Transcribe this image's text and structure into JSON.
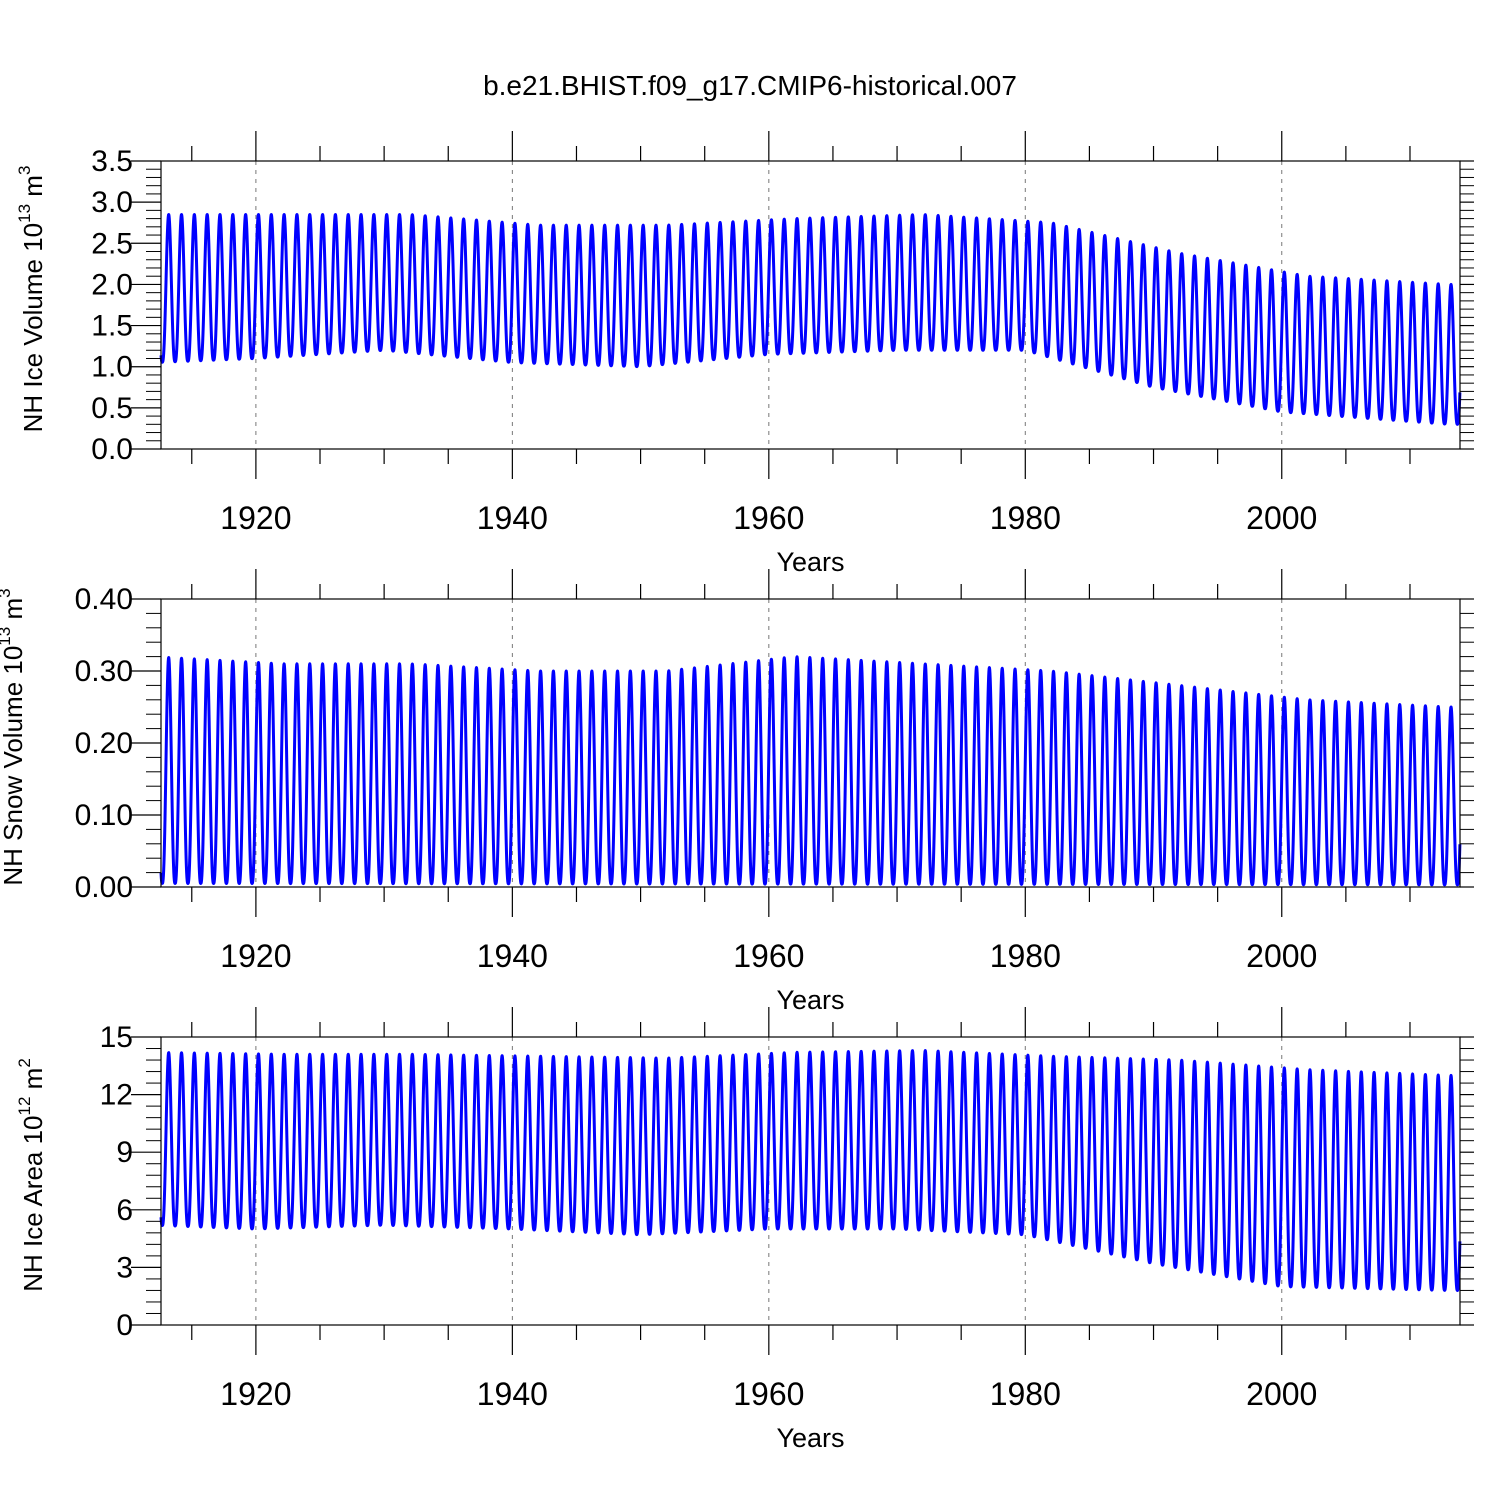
{
  "title": "b.e21.BHIST.f09_g17.CMIP6-historical.007",
  "line_color": "#0000ff",
  "chart_data": [
    {
      "type": "line",
      "ylabel": "NH Ice Volume 10",
      "ylabel_exp": "13",
      "ylabel_unit": " m",
      "ylabel_unit_exp": "3",
      "xlabel": "Years",
      "xlim": [
        1912.6,
        2013.9
      ],
      "ylim": [
        0,
        3.5
      ],
      "yticks": [
        0.0,
        0.5,
        1.0,
        1.5,
        2.0,
        2.5,
        3.0,
        3.5
      ],
      "yticklabels": [
        "0.0",
        "0.5",
        "1.0",
        "1.5",
        "2.0",
        "2.5",
        "3.0",
        "3.5"
      ],
      "ydecimals": 1,
      "xticks": [
        1920,
        1940,
        1960,
        1980,
        2000
      ],
      "xticklabels": [
        "1920",
        "1940",
        "1960",
        "1980",
        "2000"
      ],
      "grid": "vertical dashed at major x ticks",
      "series": [
        {
          "max_x": [
            1912,
            1922,
            1932,
            1942,
            1952,
            1962,
            1972,
            1982,
            1992,
            2002,
            2013
          ],
          "max_y": [
            2.85,
            2.85,
            2.85,
            2.72,
            2.72,
            2.8,
            2.85,
            2.75,
            2.38,
            2.1,
            2.0
          ],
          "min_x": [
            1912,
            1920,
            1930,
            1940,
            1950,
            1960,
            1970,
            1980,
            1990,
            2000,
            2013
          ],
          "min_y": [
            1.05,
            1.1,
            1.2,
            1.05,
            1.0,
            1.15,
            1.2,
            1.2,
            0.75,
            0.45,
            0.3
          ]
        }
      ]
    },
    {
      "type": "line",
      "ylabel": "NH Snow Volume 10",
      "ylabel_exp": "13",
      "ylabel_unit": " m",
      "ylabel_unit_exp": "3",
      "xlabel": "Years",
      "xlim": [
        1912.6,
        2013.9
      ],
      "ylim": [
        0,
        0.4
      ],
      "yticks": [
        0.0,
        0.1,
        0.2,
        0.3,
        0.4
      ],
      "yticklabels": [
        "0.00",
        "0.10",
        "0.20",
        "0.30",
        "0.40"
      ],
      "ydecimals": 2,
      "xticks": [
        1920,
        1940,
        1960,
        1980,
        2000
      ],
      "xticklabels": [
        "1920",
        "1940",
        "1960",
        "1980",
        "2000"
      ],
      "grid": "vertical dashed at major x ticks",
      "series": [
        {
          "max_x": [
            1912,
            1922,
            1932,
            1942,
            1952,
            1962,
            1972,
            1982,
            1992,
            2002,
            2013
          ],
          "max_y": [
            0.32,
            0.31,
            0.31,
            0.3,
            0.3,
            0.32,
            0.31,
            0.3,
            0.28,
            0.26,
            0.25
          ],
          "min_x": [
            1912,
            2013
          ],
          "min_y": [
            0.005,
            0.003
          ]
        }
      ]
    },
    {
      "type": "line",
      "ylabel": "NH Ice Area 10",
      "ylabel_exp": "12",
      "ylabel_unit": " m",
      "ylabel_unit_exp": "2",
      "xlabel": "Years",
      "xlim": [
        1912.6,
        2013.9
      ],
      "ylim": [
        0,
        15
      ],
      "yticks": [
        0,
        3,
        6,
        9,
        12,
        15
      ],
      "yticklabels": [
        "0",
        "3",
        "6",
        "9",
        "12",
        "15"
      ],
      "ydecimals": 0,
      "xticks": [
        1920,
        1940,
        1960,
        1980,
        2000
      ],
      "xticklabels": [
        "1920",
        "1940",
        "1960",
        "1980",
        "2000"
      ],
      "grid": "vertical dashed at major x ticks",
      "series": [
        {
          "max_x": [
            1912,
            1922,
            1932,
            1942,
            1952,
            1962,
            1972,
            1982,
            1992,
            2002,
            2013
          ],
          "max_y": [
            14.2,
            14.1,
            14.1,
            14.0,
            13.9,
            14.2,
            14.3,
            14.0,
            13.8,
            13.3,
            13.0
          ],
          "min_x": [
            1912,
            1920,
            1930,
            1940,
            1950,
            1960,
            1970,
            1980,
            1990,
            2000,
            2013
          ],
          "min_y": [
            5.2,
            5.0,
            5.2,
            5.0,
            4.7,
            5.0,
            5.0,
            4.7,
            3.2,
            2.0,
            1.8
          ]
        }
      ]
    }
  ]
}
